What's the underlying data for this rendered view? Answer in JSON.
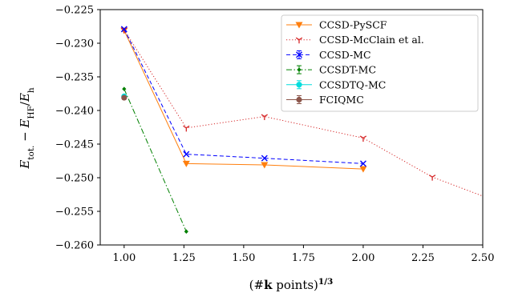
{
  "chart_data": {
    "type": "line",
    "xlabel": "(#k points)^{1/3}",
    "ylabel": "E_tot. − E_HF/E_h",
    "xlim": [
      0.9,
      2.5
    ],
    "ylim": [
      -0.26,
      -0.225
    ],
    "xticks": [
      "1.00",
      "1.25",
      "1.50",
      "1.75",
      "2.00",
      "2.25",
      "2.50"
    ],
    "yticks": [
      "−0.260",
      "−0.255",
      "−0.250",
      "−0.245",
      "−0.240",
      "−0.235",
      "−0.230",
      "−0.225"
    ],
    "grid": false,
    "legend_position": "top-right",
    "series": [
      {
        "name": "CCSD-PySCF",
        "color": "#ff7f0e",
        "line": "solid",
        "marker": "triangle-down",
        "x": [
          1.0,
          1.26,
          1.587,
          2.0
        ],
        "y": [
          -0.2281,
          -0.2479,
          -0.2481,
          -0.2487
        ]
      },
      {
        "name": "CCSD-McClain et al.",
        "color": "#d62728",
        "line": "dotted",
        "marker": "tri-down",
        "x": [
          1.0,
          1.26,
          1.587,
          2.0,
          2.289,
          2.52
        ],
        "y": [
          -0.228,
          -0.2426,
          -0.2409,
          -0.2441,
          -0.2499,
          -0.253
        ]
      },
      {
        "name": "CCSD-MC",
        "color": "#0000ff",
        "line": "dashed",
        "marker": "x",
        "x": [
          1.0,
          1.26,
          1.587,
          2.0
        ],
        "y": [
          -0.2279,
          -0.2465,
          -0.2471,
          -0.2479
        ]
      },
      {
        "name": "CCSDT-MC",
        "color": "#008000",
        "line": "dashdot",
        "marker": "diamond-small",
        "x": [
          1.0,
          1.26
        ],
        "y": [
          -0.2368,
          -0.258
        ]
      },
      {
        "name": "CCSDTQ-MC",
        "color": "#00dddd",
        "line": "solid",
        "marker": "circle",
        "x": [
          1.0
        ],
        "y": [
          -0.2379
        ]
      },
      {
        "name": "FCIQMC",
        "color": "#8c564b",
        "line": "solid",
        "marker": "circle",
        "x": [
          1.0
        ],
        "y": [
          -0.2381
        ]
      }
    ]
  }
}
